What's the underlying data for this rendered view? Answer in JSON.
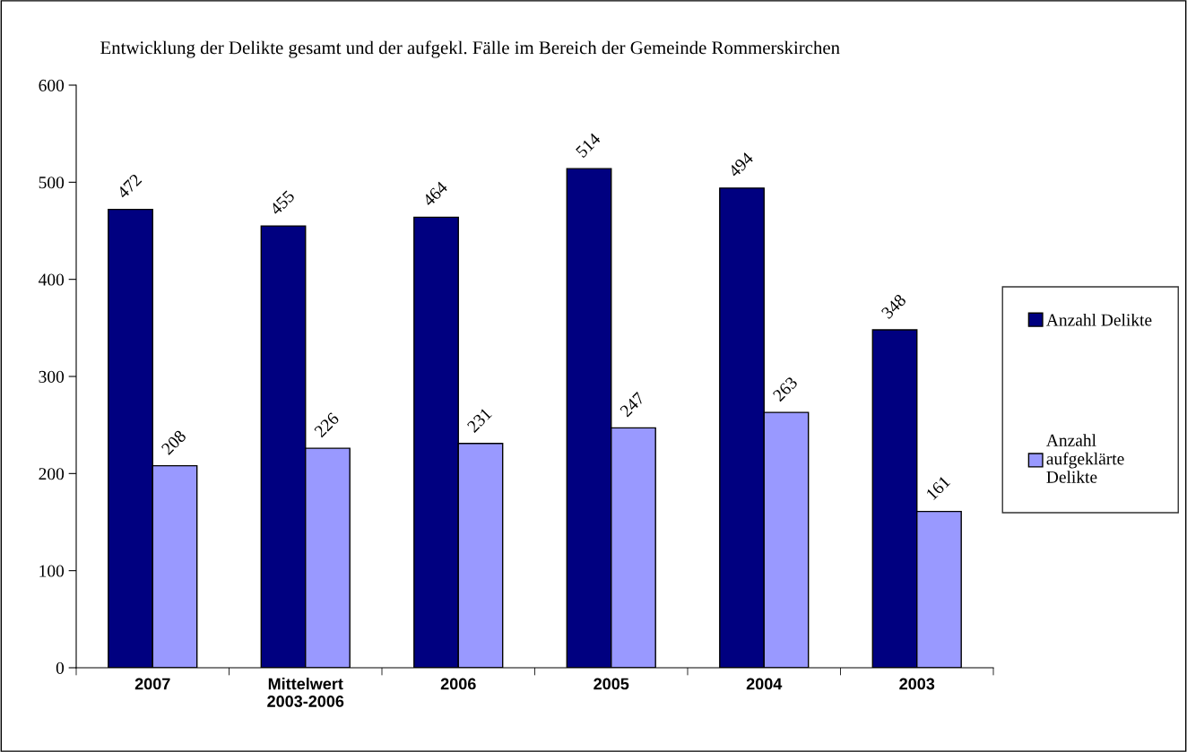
{
  "chart_data": {
    "type": "bar",
    "title": "Entwicklung der Delikte gesamt und der aufgekl. Fälle im Bereich der Gemeinde Rommerskirchen",
    "categories": [
      "2007",
      "Mittelwert\n2003-2006",
      "2006",
      "2005",
      "2004",
      "2003"
    ],
    "series": [
      {
        "name": "Anzahl Delikte",
        "color": "#000080",
        "values": [
          472,
          455,
          464,
          514,
          494,
          348
        ]
      },
      {
        "name": "Anzahl\naufgeklärte\nDelikte",
        "color": "#9999ff",
        "values": [
          208,
          226,
          231,
          247,
          263,
          161
        ]
      }
    ],
    "ylim": [
      0,
      600
    ],
    "yticks": [
      0,
      100,
      200,
      300,
      400,
      500,
      600
    ],
    "data_labels": true,
    "grid": false,
    "legend": "right"
  }
}
